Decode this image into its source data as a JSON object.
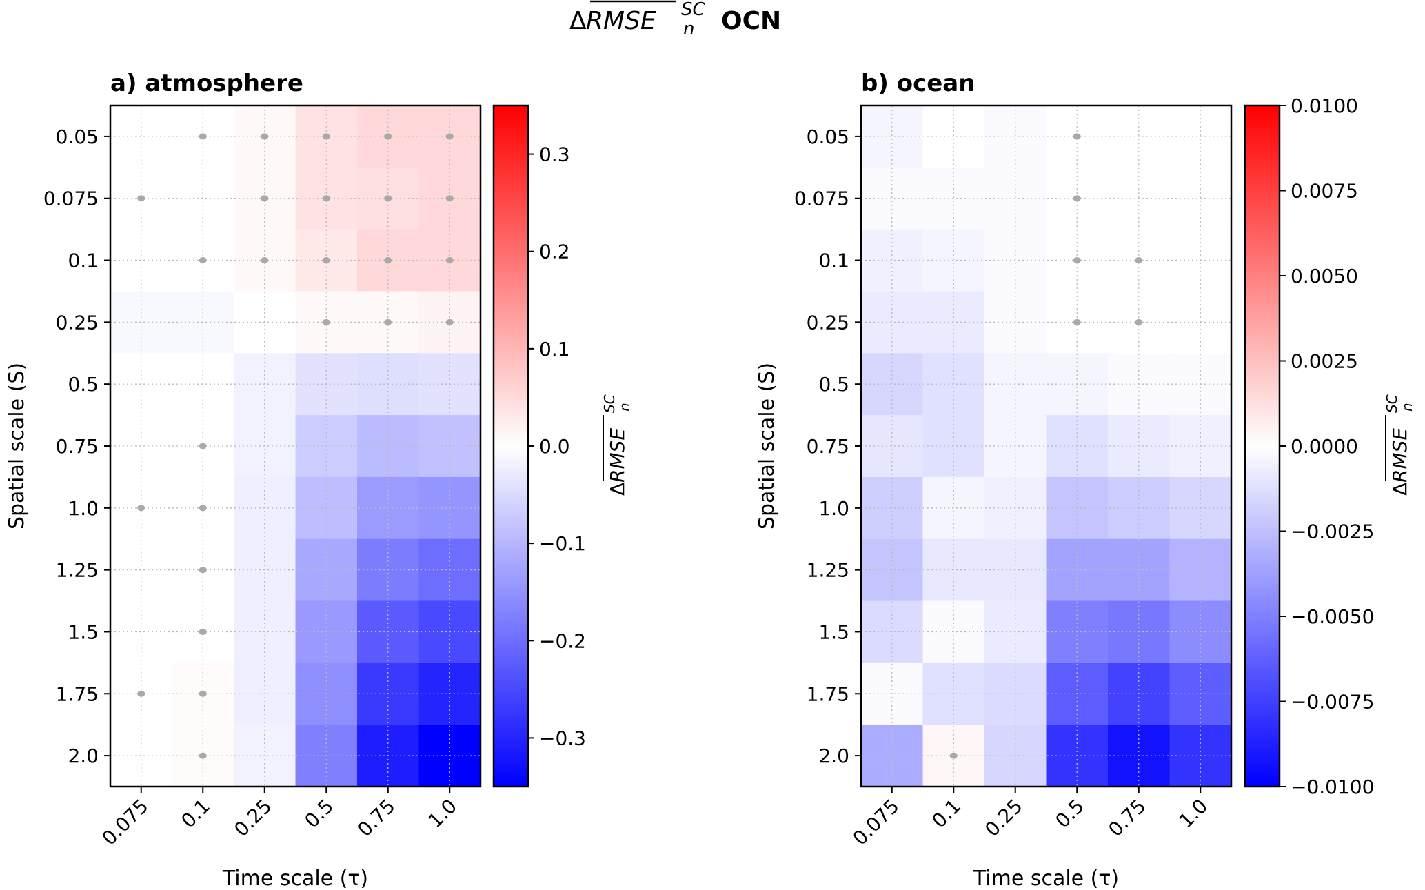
{
  "figure_title": {
    "delta": "Δ",
    "main": "RMSE",
    "sub": "n",
    "sup": "SC",
    "suffix": "OCN"
  },
  "chart_data": [
    {
      "type": "heatmap",
      "title": "a) atmosphere",
      "xlabel": "Time scale (τ)",
      "ylabel": "Spatial scale (S)",
      "colorbar_label": {
        "delta": "Δ",
        "main": "RMSE",
        "sub": "n",
        "sup": "SC"
      },
      "x_categories": [
        "0.075",
        "0.1",
        "0.25",
        "0.5",
        "0.75",
        "1.0"
      ],
      "y_categories": [
        "0.05",
        "0.075",
        "0.1",
        "0.25",
        "0.5",
        "0.75",
        "1.0",
        "1.25",
        "1.5",
        "1.75",
        "2.0"
      ],
      "colormap": "bwr",
      "vlim": [
        -0.35,
        0.35
      ],
      "colorbar_ticks": [
        0.3,
        0.2,
        0.1,
        0.0,
        -0.1,
        -0.2,
        -0.3
      ],
      "colorbar_tick_labels": [
        "0.3",
        "0.2",
        "0.1",
        "0.0",
        "−0.1",
        "−0.2",
        "−0.3"
      ],
      "grid": true,
      "values": [
        [
          0,
          0,
          0.01,
          0.038,
          0.052,
          0.052
        ],
        [
          0,
          0,
          0.01,
          0.038,
          0.042,
          0.052
        ],
        [
          0,
          0,
          0.01,
          0.03,
          0.052,
          0.052
        ],
        [
          -0.01,
          -0.01,
          0,
          0.008,
          0.01,
          0.015
        ],
        [
          0,
          0,
          -0.018,
          -0.04,
          -0.045,
          -0.04
        ],
        [
          0,
          0,
          -0.018,
          -0.07,
          -0.093,
          -0.085
        ],
        [
          0,
          0,
          -0.022,
          -0.09,
          -0.139,
          -0.145
        ],
        [
          0,
          0,
          -0.022,
          -0.12,
          -0.18,
          -0.2
        ],
        [
          0,
          0,
          -0.022,
          -0.14,
          -0.227,
          -0.25
        ],
        [
          0,
          0.005,
          -0.022,
          -0.155,
          -0.27,
          -0.3
        ],
        [
          0,
          0.005,
          -0.018,
          -0.175,
          -0.31,
          -0.35
        ]
      ],
      "significant": [
        [
          0,
          1,
          1,
          1,
          1,
          1
        ],
        [
          1,
          0,
          1,
          1,
          1,
          1
        ],
        [
          0,
          1,
          1,
          1,
          1,
          1
        ],
        [
          0,
          0,
          0,
          1,
          1,
          1
        ],
        [
          0,
          0,
          0,
          0,
          0,
          0
        ],
        [
          0,
          1,
          0,
          0,
          0,
          0
        ],
        [
          1,
          1,
          0,
          0,
          0,
          0
        ],
        [
          0,
          1,
          0,
          0,
          0,
          0
        ],
        [
          0,
          1,
          0,
          0,
          0,
          0
        ],
        [
          1,
          1,
          0,
          0,
          0,
          0
        ],
        [
          0,
          1,
          0,
          0,
          0,
          0
        ]
      ]
    },
    {
      "type": "heatmap",
      "title": "b) ocean",
      "xlabel": "Time scale (τ)",
      "ylabel": "Spatial scale (S)",
      "colorbar_label": {
        "delta": "Δ",
        "main": "RMSE",
        "sub": "n",
        "sup": "SC"
      },
      "x_categories": [
        "0.075",
        "0.1",
        "0.25",
        "0.5",
        "0.75",
        "1.0"
      ],
      "y_categories": [
        "0.05",
        "0.075",
        "0.1",
        "0.25",
        "0.5",
        "0.75",
        "1.0",
        "1.25",
        "1.5",
        "1.75",
        "2.0"
      ],
      "colormap": "bwr",
      "vlim": [
        -0.01,
        0.01
      ],
      "colorbar_ticks": [
        0.01,
        0.0075,
        0.005,
        0.0025,
        0.0,
        -0.0025,
        -0.005,
        -0.0075,
        -0.01
      ],
      "colorbar_tick_labels": [
        "0.0100",
        "0.0075",
        "0.0050",
        "0.0025",
        "0.0000",
        "−0.0025",
        "−0.0050",
        "−0.0075",
        "−0.0100"
      ],
      "grid": true,
      "values": [
        [
          -0.0004,
          0,
          -0.0002,
          0,
          0,
          0
        ],
        [
          -0.0002,
          -0.0002,
          -0.0002,
          0,
          0,
          0
        ],
        [
          -0.0006,
          -0.0004,
          -0.0002,
          0,
          0,
          0
        ],
        [
          -0.0008,
          -0.0008,
          -0.0002,
          0,
          0,
          0
        ],
        [
          -0.0016,
          -0.0012,
          -0.0004,
          -0.0004,
          -0.0002,
          -0.0002
        ],
        [
          -0.001,
          -0.0012,
          -0.0004,
          -0.0012,
          -0.0008,
          -0.0006
        ],
        [
          -0.0019,
          -0.0004,
          -0.0006,
          -0.0023,
          -0.002,
          -0.0016
        ],
        [
          -0.0023,
          -0.0009,
          -0.0009,
          -0.0036,
          -0.0036,
          -0.003
        ],
        [
          -0.0014,
          -0.0002,
          -0.0008,
          -0.005,
          -0.0053,
          -0.0045
        ],
        [
          -0.0002,
          -0.0012,
          -0.0014,
          -0.0064,
          -0.0074,
          -0.0063
        ],
        [
          -0.0033,
          0.0003,
          -0.0016,
          -0.008,
          -0.0093,
          -0.008
        ]
      ],
      "significant": [
        [
          0,
          0,
          0,
          1,
          0,
          0
        ],
        [
          0,
          0,
          0,
          1,
          0,
          0
        ],
        [
          0,
          0,
          0,
          1,
          1,
          0
        ],
        [
          0,
          0,
          0,
          1,
          1,
          0
        ],
        [
          0,
          0,
          0,
          0,
          0,
          0
        ],
        [
          0,
          0,
          0,
          0,
          0,
          0
        ],
        [
          0,
          0,
          0,
          0,
          0,
          0
        ],
        [
          0,
          0,
          0,
          0,
          0,
          0
        ],
        [
          0,
          0,
          0,
          0,
          0,
          0
        ],
        [
          0,
          0,
          0,
          0,
          0,
          0
        ],
        [
          0,
          1,
          0,
          0,
          0,
          0
        ]
      ]
    }
  ]
}
